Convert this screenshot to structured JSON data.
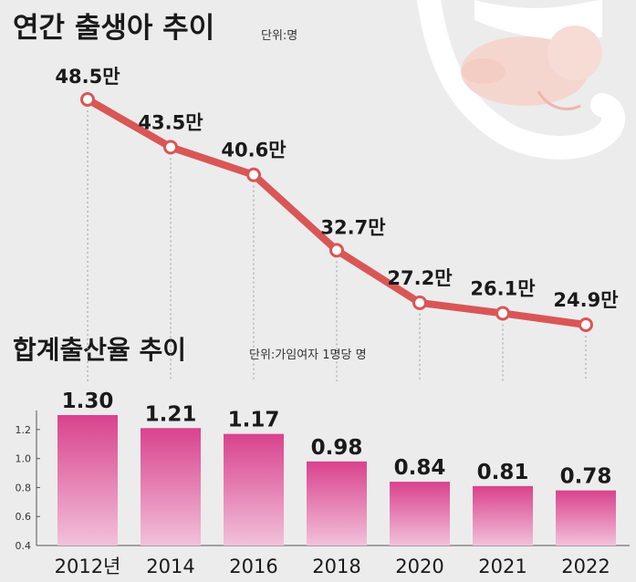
{
  "colors": {
    "line": "#d95656",
    "bar_top": "#d9428d",
    "bar_bottom": "#f2c1da",
    "background": "#ececec"
  },
  "births": {
    "title": "연간 출생아 추이",
    "unit": "단위:명"
  },
  "tfr": {
    "title": "합계출산율 추이",
    "unit": "단위:가임여자 1명당 명"
  },
  "chart_data": [
    {
      "type": "line",
      "title": "연간 출생아 추이",
      "unit": "단위:명",
      "x": [
        "2012년",
        "2014",
        "2016",
        "2018",
        "2020",
        "2021",
        "2022"
      ],
      "values": [
        48.5,
        43.5,
        40.6,
        32.7,
        27.2,
        26.1,
        24.9
      ],
      "data_labels": [
        "48.5만",
        "43.5만",
        "40.6만",
        "32.7만",
        "27.2만",
        "26.1만",
        "24.9만"
      ],
      "color": "#d95656"
    },
    {
      "type": "bar",
      "title": "합계출산율 추이",
      "unit": "단위:가임여자 1명당 명",
      "categories": [
        "2012년",
        "2014",
        "2016",
        "2018",
        "2020",
        "2021",
        "2022"
      ],
      "values": [
        1.3,
        1.21,
        1.17,
        0.98,
        0.84,
        0.81,
        0.78
      ],
      "data_labels": [
        "1.30",
        "1.21",
        "1.17",
        "0.98",
        "0.84",
        "0.81",
        "0.78"
      ],
      "ylim": [
        0.4,
        1.3
      ],
      "yticks": [
        "0.4",
        "0.6",
        "0.8",
        "1.0",
        "1.2"
      ],
      "grid": false
    }
  ]
}
